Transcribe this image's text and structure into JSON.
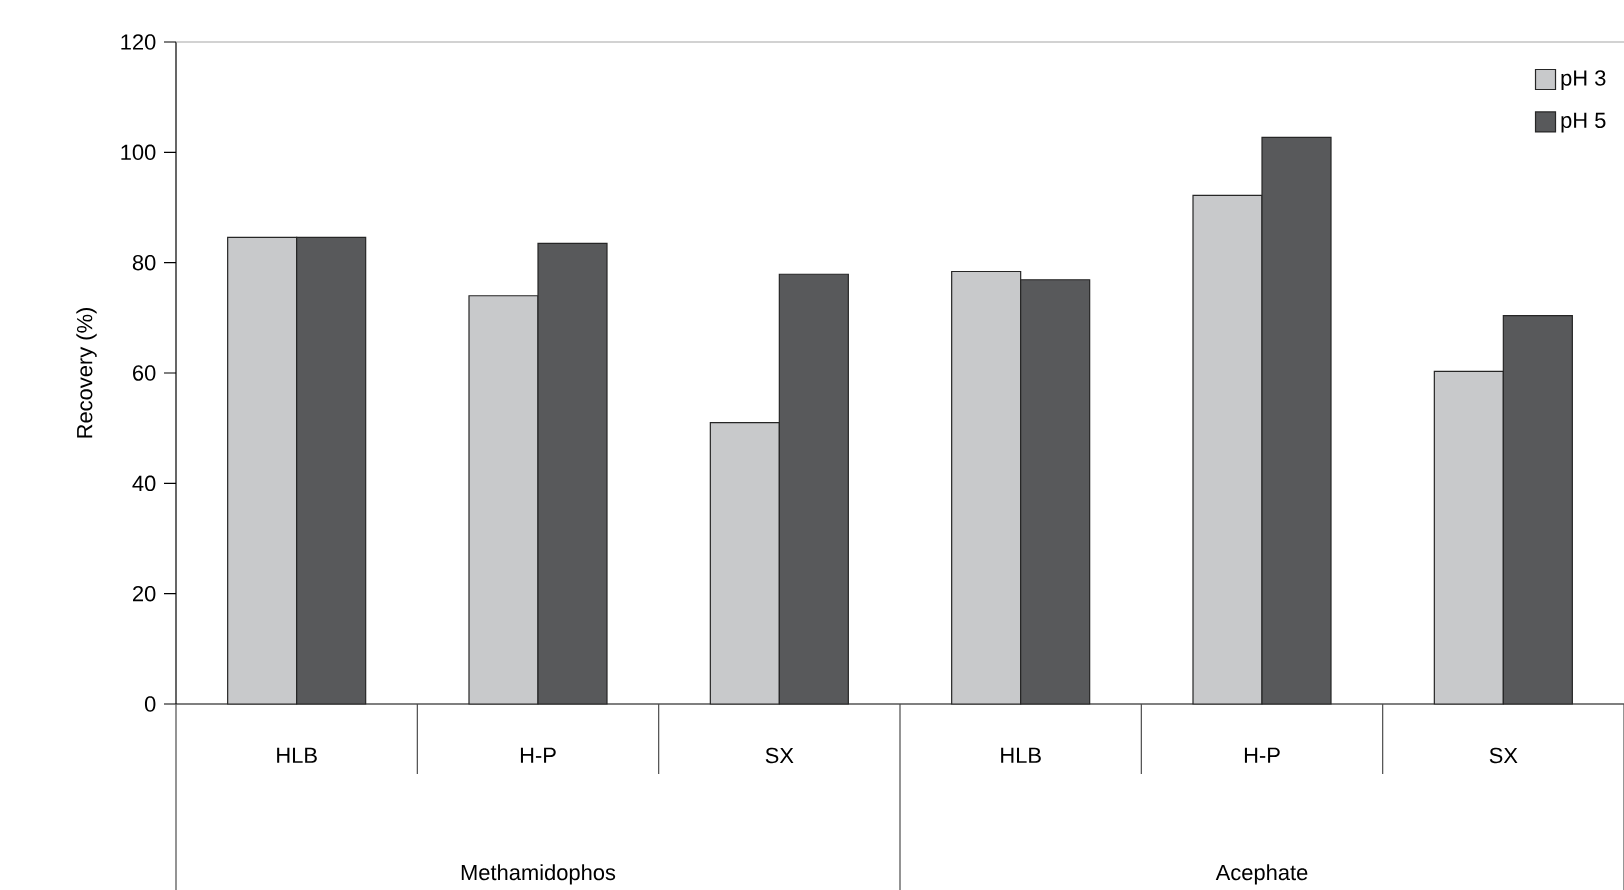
{
  "chart_data": {
    "type": "bar",
    "ylabel": "Recovery (%)",
    "categories": [
      "HLB",
      "H-P",
      "SX",
      "HLB",
      "H-P",
      "SX"
    ],
    "annotations": [
      "Methamidophos",
      "Acephate"
    ],
    "series": [
      {
        "name": "pH 3",
        "color": "#c8c9cb",
        "values": [
          84.6,
          74.0,
          51.0,
          78.4,
          92.2,
          60.3
        ]
      },
      {
        "name": "pH 5",
        "color": "#58595b",
        "values": [
          84.6,
          83.5,
          77.9,
          76.9,
          102.7,
          70.4
        ]
      }
    ],
    "ylim": [
      0,
      120
    ],
    "yticks": [
      0,
      20,
      40,
      60,
      80,
      100,
      120
    ],
    "grid": false,
    "legend": "top right"
  }
}
